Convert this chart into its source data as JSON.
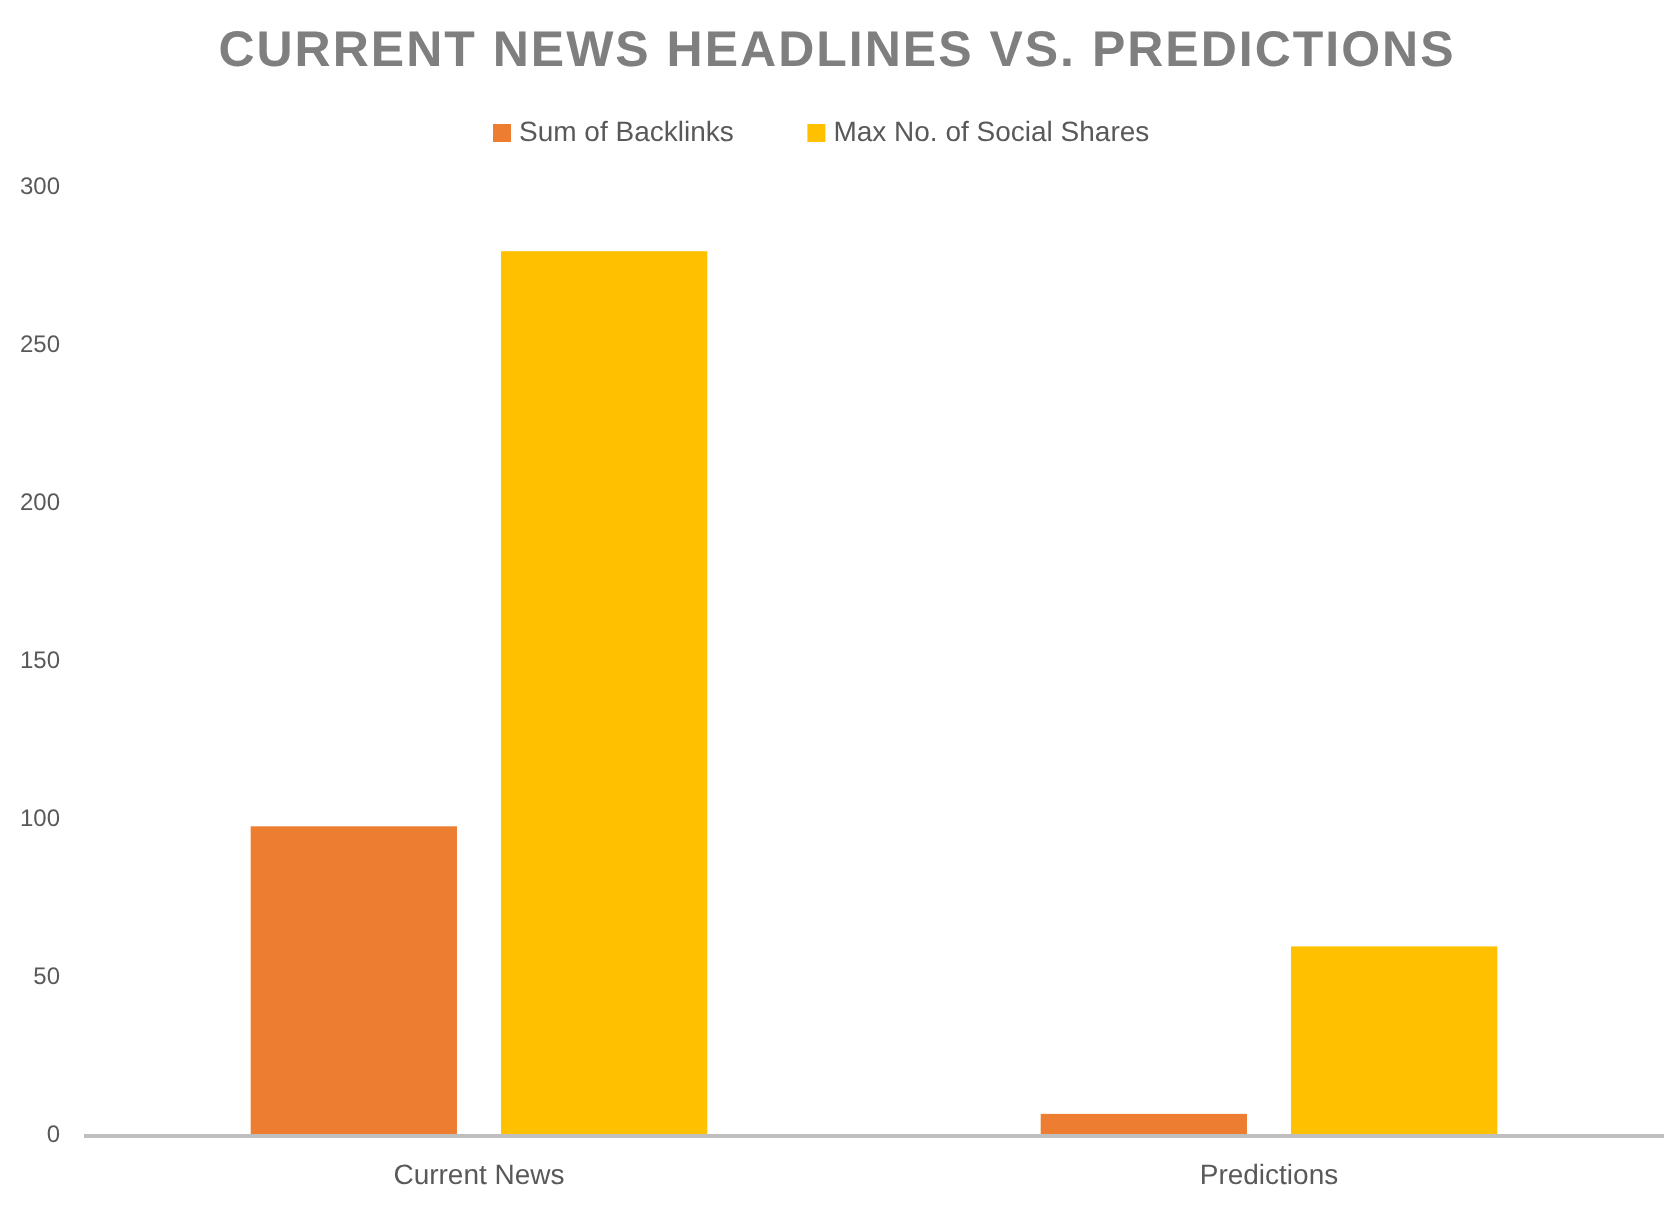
{
  "chart_data": {
    "type": "bar",
    "title": "CURRENT NEWS HEADLINES VS. PREDICTIONS",
    "categories": [
      "Current News",
      "Predictions"
    ],
    "series": [
      {
        "name": "Sum of Backlinks",
        "color": "#ed7d31",
        "values": [
          98,
          7
        ]
      },
      {
        "name": "Max No. of Social Shares",
        "color": "#ffc000",
        "values": [
          280,
          60
        ]
      }
    ],
    "ylim": [
      0,
      300
    ],
    "yticks": [
      0,
      50,
      100,
      150,
      200,
      250,
      300
    ],
    "grid": false,
    "legend": "top"
  }
}
